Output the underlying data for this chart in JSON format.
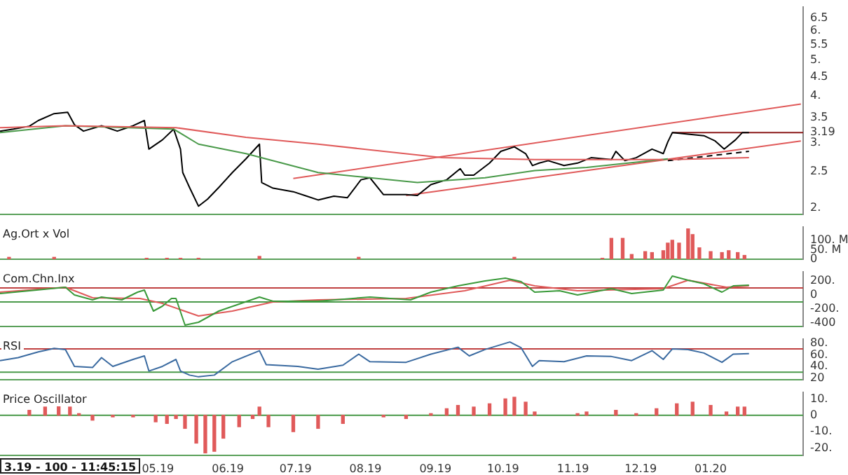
{
  "chart_data": [
    {
      "type": "line",
      "log": true,
      "tick_labels": "y",
      "xlim": [
        "2019-02-20",
        "2020-02-11"
      ],
      "ylim": [
        1.92,
        6.96
      ],
      "yticks": [
        {
          "value": 2,
          "label": "2."
        },
        2.5,
        {
          "value": 3,
          "label": "3."
        },
        {
          "value": 3.19,
          "label": "3.19"
        },
        3.5,
        {
          "value": 4,
          "label": "4."
        },
        4.5,
        {
          "value": 5,
          "label": "5."
        },
        5.5,
        {
          "value": 6,
          "label": "6."
        },
        6.5
      ],
      "series": [
        {
          "color": "#e05a5a",
          "x": [
            "2019-02-20",
            "2019-03-21",
            "2019-05-09",
            "2019-06-09",
            "2019-07-11",
            "2019-09-04",
            "2019-10-15",
            "2019-12-11"
          ],
          "values": [
            3.29,
            3.33,
            3.29,
            3.1,
            2.97,
            2.73,
            2.7,
            2.7
          ]
        },
        {
          "color": "#4a9a4a",
          "x": [
            "2019-02-20",
            "2019-03-21",
            "2019-05-08",
            "2019-05-19",
            "2019-06-09",
            "2019-07-11",
            "2019-08-24",
            "2019-09-23",
            "2019-10-15",
            "2019-11-07",
            "2019-12-13"
          ],
          "values": [
            3.19,
            3.33,
            3.26,
            2.97,
            2.8,
            2.49,
            2.34,
            2.41,
            2.52,
            2.57,
            2.71
          ]
        },
        {
          "color": "#000000",
          "x": [
            "2019-02-20",
            "2019-02-26",
            "2019-03-05",
            "2019-03-09",
            "2019-03-16",
            "2019-03-22",
            "2019-03-25",
            "2019-03-29",
            "2019-04-06",
            "2019-04-13",
            "2019-04-20",
            "2019-04-25",
            "2019-04-27",
            "2019-05-03",
            "2019-05-08",
            "2019-05-11",
            "2019-05-12",
            "2019-05-15",
            "2019-05-19",
            "2019-05-23",
            "2019-05-28",
            "2019-06-03",
            "2019-06-09",
            "2019-06-15",
            "2019-06-16",
            "2019-06-21",
            "2019-06-30",
            "2019-07-06",
            "2019-07-11",
            "2019-07-18",
            "2019-07-24",
            "2019-07-30",
            "2019-08-03",
            "2019-08-09",
            "2019-08-19",
            "2019-08-24",
            "2019-08-30",
            "2019-09-06",
            "2019-09-12",
            "2019-09-14",
            "2019-09-18",
            "2019-09-25",
            "2019-09-30",
            "2019-10-06",
            "2019-10-11",
            "2019-10-14",
            "2019-10-17",
            "2019-10-21",
            "2019-10-28",
            "2019-11-03",
            "2019-11-09",
            "2019-11-18",
            "2019-11-20",
            "2019-11-24",
            "2019-11-29",
            "2019-12-06",
            "2019-12-11",
            "2019-12-13",
            "2019-12-15",
            "2019-12-22",
            "2019-12-29",
            "2020-01-03",
            "2020-01-07",
            "2020-01-12",
            "2020-01-15",
            "2020-01-18"
          ],
          "values": [
            3.22,
            3.26,
            3.32,
            3.44,
            3.59,
            3.62,
            3.35,
            3.22,
            3.33,
            3.22,
            3.33,
            3.44,
            2.88,
            3.05,
            3.26,
            2.88,
            2.49,
            2.27,
            2.02,
            2.11,
            2.27,
            2.49,
            2.71,
            2.97,
            2.34,
            2.26,
            2.21,
            2.15,
            2.1,
            2.15,
            2.13,
            2.38,
            2.41,
            2.17,
            2.17,
            2.16,
            2.31,
            2.38,
            2.55,
            2.45,
            2.45,
            2.64,
            2.84,
            2.92,
            2.8,
            2.6,
            2.64,
            2.68,
            2.6,
            2.64,
            2.73,
            2.7,
            2.84,
            2.68,
            2.73,
            2.88,
            2.8,
            3.01,
            3.19,
            3.16,
            3.13,
            3.03,
            2.88,
            3.05,
            3.19,
            3.19
          ]
        },
        {
          "color": "#e05a5a",
          "x": [
            "2019-06-30",
            "2020-02-10"
          ],
          "values": [
            2.4,
            3.81
          ]
        },
        {
          "color": "#e05a5a",
          "x": [
            "2019-08-19",
            "2020-02-10"
          ],
          "values": [
            2.16,
            3.03
          ]
        },
        {
          "color": "#e05a5a",
          "x": [
            "2019-12-15",
            "2020-01-18"
          ],
          "values": [
            2.7,
            2.73
          ]
        },
        {
          "color": "#000000",
          "line_style": "dashed",
          "x": [
            "2019-12-13",
            "2020-01-18"
          ],
          "values": [
            2.68,
            2.84
          ]
        },
        {
          "color": "#8b1a1a",
          "x": [
            "2019-12-15",
            "2020-02-11"
          ],
          "values": [
            3.19,
            3.19
          ]
        }
      ]
    },
    {
      "type": "bar",
      "title": "Ag.Ort x Vol",
      "tick_labels": "y",
      "xlim": [
        "2019-02-20",
        "2020-02-11"
      ],
      "ylim": [
        0,
        170
      ],
      "yticks": [
        {
          "value": 0,
          "label": "0"
        },
        {
          "value": 50,
          "label": "50. M"
        },
        {
          "value": 100,
          "label": "100. M"
        }
      ],
      "series": [
        {
          "color": "#e05a5a",
          "x": [
            "2019-02-24",
            "2019-03-16",
            "2019-04-26",
            "2019-05-05",
            "2019-05-11",
            "2019-05-19",
            "2019-06-15",
            "2019-07-29",
            "2019-10-06",
            "2019-11-14",
            "2019-11-18",
            "2019-11-23",
            "2019-11-27",
            "2019-12-03",
            "2019-12-06",
            "2019-12-11",
            "2019-12-13",
            "2019-12-15",
            "2019-12-18",
            "2019-12-22",
            "2019-12-24",
            "2019-12-27",
            "2020-01-01",
            "2020-01-06",
            "2020-01-09",
            "2020-01-13",
            "2020-01-16"
          ],
          "values": [
            10,
            10,
            5,
            5,
            5,
            5,
            15,
            10,
            10,
            5,
            110,
            110,
            25,
            40,
            35,
            45,
            85,
            100,
            85,
            160,
            130,
            60,
            40,
            35,
            45,
            35,
            20
          ]
        }
      ]
    },
    {
      "type": "line",
      "title": "Com.Chn.Inx",
      "tick_labels": "y",
      "xlim": [
        "2019-02-20",
        "2020-02-11"
      ],
      "ylim": [
        -450,
        330
      ],
      "yticks": [
        {
          "value": -400,
          "label": "-400"
        },
        {
          "value": -200,
          "label": "-200."
        },
        0,
        {
          "value": 200,
          "label": "200."
        }
      ],
      "ref_lines": [
        {
          "axis": "y",
          "value": 100,
          "color": "#c04040"
        },
        {
          "axis": "y",
          "value": -100,
          "color": "#4a9a4a"
        }
      ],
      "series": [
        {
          "color": "#3a9a3a",
          "x": [
            "2019-02-20",
            "2019-03-05",
            "2019-03-21",
            "2019-03-25",
            "2019-04-02",
            "2019-04-06",
            "2019-04-15",
            "2019-04-22",
            "2019-04-25",
            "2019-04-29",
            "2019-05-03",
            "2019-05-07",
            "2019-05-09",
            "2019-05-13",
            "2019-05-19",
            "2019-05-28",
            "2019-06-15",
            "2019-06-21",
            "2019-07-11",
            "2019-08-03",
            "2019-08-21",
            "2019-08-30",
            "2019-09-11",
            "2019-09-23",
            "2019-10-02",
            "2019-10-09",
            "2019-10-15",
            "2019-10-26",
            "2019-11-03",
            "2019-11-18",
            "2019-11-27",
            "2019-12-11",
            "2019-12-15",
            "2019-12-22",
            "2019-12-29",
            "2020-01-06",
            "2020-01-11",
            "2020-01-18"
          ],
          "values": [
            20,
            60,
            110,
            0,
            -70,
            -30,
            -70,
            40,
            70,
            -230,
            -160,
            -50,
            -50,
            -430,
            -390,
            -230,
            -30,
            -90,
            -90,
            -30,
            -70,
            40,
            130,
            200,
            240,
            190,
            40,
            60,
            0,
            90,
            20,
            70,
            270,
            210,
            160,
            40,
            130,
            140
          ]
        },
        {
          "color": "#e05a5a",
          "x": [
            "2019-02-20",
            "2019-03-21",
            "2019-04-02",
            "2019-04-23",
            "2019-05-03",
            "2019-05-11",
            "2019-05-19",
            "2019-06-03",
            "2019-06-21",
            "2019-07-11",
            "2019-08-19",
            "2019-09-14",
            "2019-10-04",
            "2019-10-15",
            "2019-11-03",
            "2019-12-11",
            "2019-12-22",
            "2020-01-08",
            "2020-01-18"
          ],
          "values": [
            40,
            110,
            -40,
            -50,
            -120,
            -210,
            -300,
            -230,
            -100,
            -70,
            -50,
            60,
            210,
            130,
            60,
            90,
            210,
            110,
            130
          ]
        }
      ]
    },
    {
      "type": "line",
      "title": "RSI",
      "tick_labels": "y",
      "xlim": [
        "2019-02-20",
        "2020-02-11"
      ],
      "ylim": [
        17,
        87
      ],
      "yticks": [
        {
          "value": 20,
          "label": "20"
        },
        {
          "value": 40,
          "label": "40."
        },
        {
          "value": 60,
          "label": "60."
        },
        {
          "value": 80,
          "label": "80."
        }
      ],
      "ref_lines": [
        {
          "axis": "y",
          "value": 70,
          "color": "#c04040"
        },
        {
          "axis": "y",
          "value": 30,
          "color": "#4a9a4a"
        }
      ],
      "series": [
        {
          "color": "#3a6aa0",
          "x": [
            "2019-02-20",
            "2019-02-28",
            "2019-03-09",
            "2019-03-16",
            "2019-03-21",
            "2019-03-25",
            "2019-04-02",
            "2019-04-06",
            "2019-04-11",
            "2019-04-20",
            "2019-04-25",
            "2019-04-27",
            "2019-05-03",
            "2019-05-09",
            "2019-05-11",
            "2019-05-15",
            "2019-05-19",
            "2019-05-26",
            "2019-06-03",
            "2019-06-15",
            "2019-06-18",
            "2019-07-02",
            "2019-07-11",
            "2019-07-22",
            "2019-07-29",
            "2019-08-03",
            "2019-08-19",
            "2019-08-30",
            "2019-09-11",
            "2019-09-16",
            "2019-09-23",
            "2019-10-04",
            "2019-10-09",
            "2019-10-14",
            "2019-10-17",
            "2019-10-28",
            "2019-11-07",
            "2019-11-18",
            "2019-11-27",
            "2019-12-06",
            "2019-12-11",
            "2019-12-15",
            "2019-12-22",
            "2019-12-29",
            "2020-01-06",
            "2020-01-11",
            "2020-01-18"
          ],
          "values": [
            50,
            55,
            65,
            71,
            69,
            40,
            38,
            55,
            40,
            52,
            58,
            32,
            40,
            52,
            32,
            25,
            22,
            25,
            48,
            67,
            43,
            40,
            35,
            42,
            61,
            48,
            47,
            61,
            73,
            58,
            69,
            82,
            72,
            40,
            50,
            48,
            58,
            57,
            50,
            67,
            52,
            70,
            69,
            63,
            47,
            61,
            62
          ]
        }
      ]
    },
    {
      "type": "bar",
      "title": "Price Oscillator",
      "xlim": [
        "2019-02-20",
        "2020-02-11"
      ],
      "xticks": [
        {
          "value": "2019-05-01",
          "label": "05.19"
        },
        {
          "value": "2019-06-01",
          "label": "06.19"
        },
        {
          "value": "2019-07-01",
          "label": "07.19"
        },
        {
          "value": "2019-08-01",
          "label": "08.19"
        },
        {
          "value": "2019-09-01",
          "label": "09.19"
        },
        {
          "value": "2019-10-01",
          "label": "10.19"
        },
        {
          "value": "2019-11-01",
          "label": "11.19"
        },
        {
          "value": "2019-12-01",
          "label": "12.19"
        },
        {
          "value": "2020-01-01",
          "label": "01.20"
        }
      ],
      "ylim": [
        -24.5,
        14
      ],
      "yticks": [
        {
          "value": -20,
          "label": "-20."
        },
        {
          "value": -10,
          "label": "-10."
        },
        0,
        {
          "value": 10,
          "label": "10."
        }
      ],
      "ref_lines": [
        {
          "axis": "y",
          "value": 0,
          "color": "#4a9a4a"
        }
      ],
      "annotations": [
        "3.19 - 100 - 11:45:15"
      ],
      "series": [
        {
          "color": "#e05a5a",
          "x": [
            "2019-03-05",
            "2019-03-12",
            "2019-03-18",
            "2019-03-23",
            "2019-03-27",
            "2019-04-02",
            "2019-04-11",
            "2019-04-20",
            "2019-04-30",
            "2019-05-05",
            "2019-05-09",
            "2019-05-13",
            "2019-05-18",
            "2019-05-22",
            "2019-05-26",
            "2019-05-30",
            "2019-06-06",
            "2019-06-12",
            "2019-06-15",
            "2019-06-19",
            "2019-06-30",
            "2019-07-11",
            "2019-07-22",
            "2019-08-09",
            "2019-08-19",
            "2019-08-30",
            "2019-09-06",
            "2019-09-11",
            "2019-09-18",
            "2019-09-25",
            "2019-10-02",
            "2019-10-06",
            "2019-10-11",
            "2019-10-15",
            "2019-11-03",
            "2019-11-07",
            "2019-11-20",
            "2019-11-29",
            "2019-12-08",
            "2019-12-17",
            "2019-12-24",
            "2020-01-01",
            "2020-01-08",
            "2020-01-13",
            "2020-01-16"
          ],
          "values": [
            3,
            5,
            6,
            5,
            1,
            -3,
            -1,
            -1,
            -4,
            -5,
            -2,
            -8,
            -17,
            -23,
            -22,
            -14,
            -7,
            -2,
            5,
            -7,
            -10,
            -8,
            -5,
            -1,
            -2,
            1,
            4,
            6,
            5,
            7,
            10,
            11,
            8,
            2,
            1,
            2,
            3,
            1,
            4,
            7,
            8,
            6,
            2,
            5,
            5
          ]
        }
      ]
    }
  ]
}
